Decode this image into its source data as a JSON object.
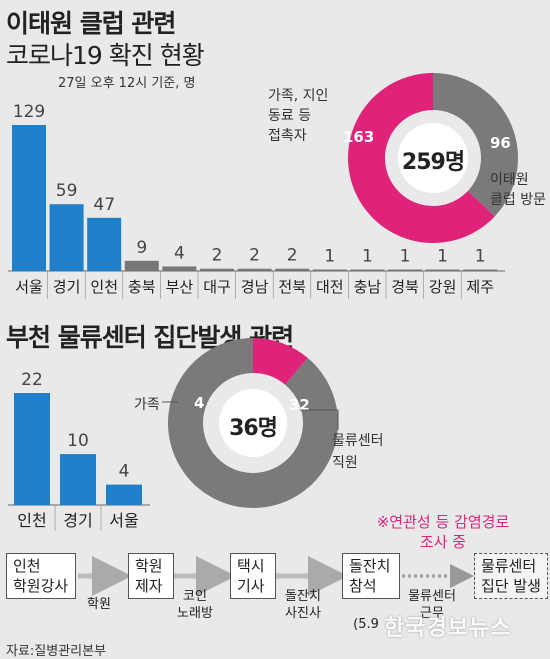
{
  "title1": "이태원 클럽 관련",
  "title2": "코로나19 확진 현황",
  "note": "27일 오후 12시 기준, 명",
  "chart_data": [
    {
      "type": "bar",
      "categories": [
        "서울",
        "경기",
        "인천",
        "충북",
        "부산",
        "대구",
        "경남",
        "전북",
        "대전",
        "충남",
        "경북",
        "강원",
        "제주"
      ],
      "values": [
        129,
        59,
        47,
        9,
        4,
        2,
        2,
        2,
        1,
        1,
        1,
        1,
        1
      ],
      "ylim": [
        0,
        129
      ]
    },
    {
      "type": "pie",
      "center_label": "259명",
      "labels": [
        "가족, 지인\n동료 등\n접촉자",
        "이태원\n클럽 방문"
      ],
      "values": [
        163,
        96
      ],
      "colors": [
        "#e0237a",
        "#7a7a7a"
      ]
    },
    {
      "type": "bar",
      "categories": [
        "인천",
        "경기",
        "서울"
      ],
      "values": [
        22,
        10,
        4
      ],
      "ylim": [
        0,
        22
      ]
    },
    {
      "type": "pie",
      "center_label": "36명",
      "labels": [
        "가족",
        "물류센터\n직원"
      ],
      "values": [
        4,
        32
      ],
      "colors": [
        "#e0237a",
        "#7a7a7a"
      ]
    }
  ],
  "section2_title": "부천 물류센터 집단발생 관련",
  "pie1": {
    "label_contact_1": "가족, 지인",
    "label_contact_2": "동료 등",
    "label_contact_3": "접촉자",
    "label_club_1": "이태원",
    "label_club_2": "클럽 방문",
    "val_contact": "163",
    "val_club": "96",
    "center": "259명"
  },
  "pie2": {
    "label_family": "가족",
    "label_worker_1": "물류센터",
    "label_worker_2": "직원",
    "val_family": "4",
    "val_worker": "32",
    "center": "36명"
  },
  "flow": {
    "box1_1": "인천",
    "box1_2": "학원강사",
    "lbl1": "학원",
    "box2_1": "학원",
    "box2_2": "제자",
    "lbl2_1": "코인",
    "lbl2_2": "노래방",
    "box3_1": "택시",
    "box3_2": "기사",
    "lbl3_1": "돌잔치",
    "lbl3_2": "사진사",
    "box4_1": "돌잔치",
    "box4_2": "참석",
    "box4_sub": "(5.9",
    "lbl4_1": "물류센터",
    "lbl4_2": "근무",
    "box5_1": "물류센터",
    "box5_2": "집단 발생",
    "note_1": "※연관성 등 감염경로",
    "note_2": "조사 중"
  },
  "source": "자료:질병관리본부",
  "watermark": "한국경보뉴스",
  "colors": {
    "bar": "#1f7fc9",
    "bar_small": "#777777",
    "accent": "#e0237a",
    "gray": "#7a7a7a"
  }
}
